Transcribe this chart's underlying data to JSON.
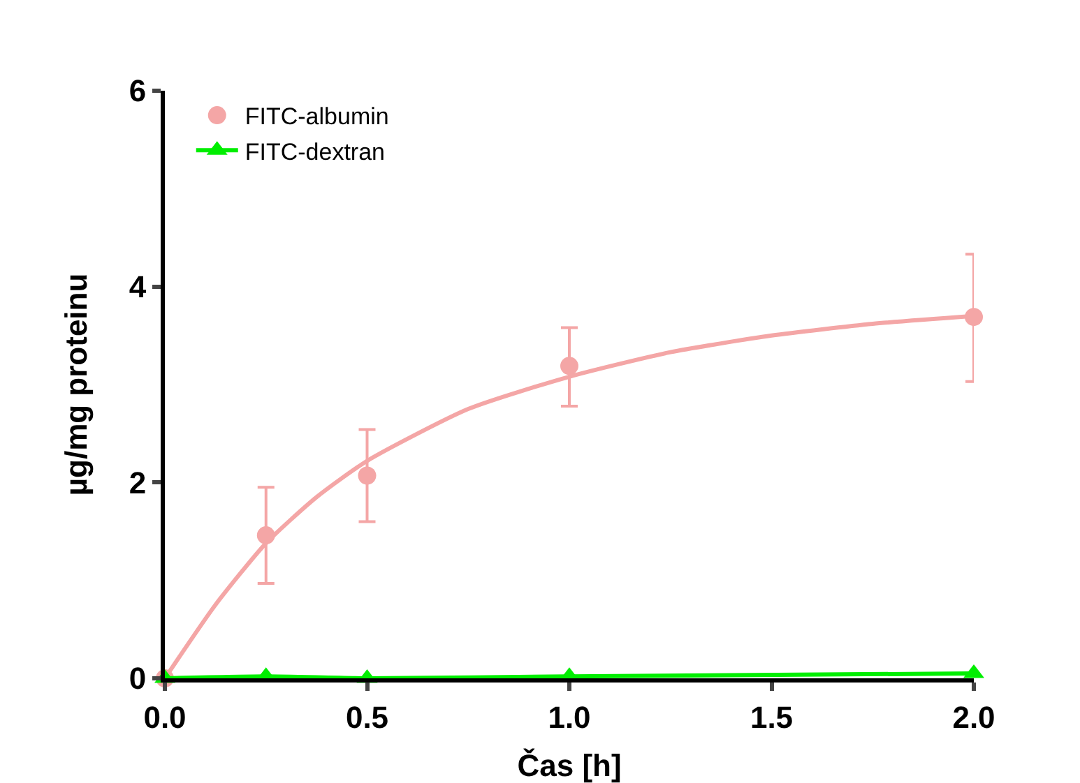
{
  "chart_data": {
    "type": "scatter",
    "xlabel": "Čas [h]",
    "ylabel": "µg/mg proteinu",
    "xlim": [
      0,
      2
    ],
    "xticks": [
      {
        "value": 0,
        "label": "0.0"
      },
      {
        "value": 0.5,
        "label": "0.5"
      },
      {
        "value": 1,
        "label": "1.0"
      },
      {
        "value": 1.5,
        "label": "1.5"
      },
      {
        "value": 2,
        "label": "2.0"
      }
    ],
    "ylim": [
      0,
      6
    ],
    "yticks": [
      0,
      2,
      4,
      6
    ],
    "grid": false,
    "legend": "top left",
    "series": [
      {
        "name": "FITC-albumin",
        "marker": "circle",
        "color": "#f4a6a6",
        "x": [
          0,
          0.25,
          0.5,
          1,
          2
        ],
        "values": [
          0,
          1.46,
          2.07,
          3.19,
          3.69
        ],
        "errors": [
          null,
          [
            0.97,
            1.95
          ],
          [
            1.6,
            2.54
          ],
          [
            2.78,
            3.58
          ],
          [
            3.03,
            4.33
          ]
        ]
      },
      {
        "type": "line",
        "marker": "none",
        "color": "#f4a6a6",
        "line_style": "solid",
        "x": [
          0,
          0.125,
          0.25,
          0.375,
          0.5,
          0.75,
          1,
          1.25,
          1.5,
          1.75,
          2
        ],
        "values": [
          0,
          0.75,
          1.38,
          1.85,
          2.22,
          2.75,
          3.08,
          3.33,
          3.5,
          3.62,
          3.7
        ]
      },
      {
        "name": "FITC-dextran",
        "type": "line",
        "marker": "triangle",
        "color": "#00ee00",
        "line_style": "solid",
        "x": [
          0,
          0.25,
          0.5,
          1,
          2
        ],
        "values": [
          0,
          0.02,
          0,
          0.02,
          0.05
        ]
      }
    ]
  }
}
